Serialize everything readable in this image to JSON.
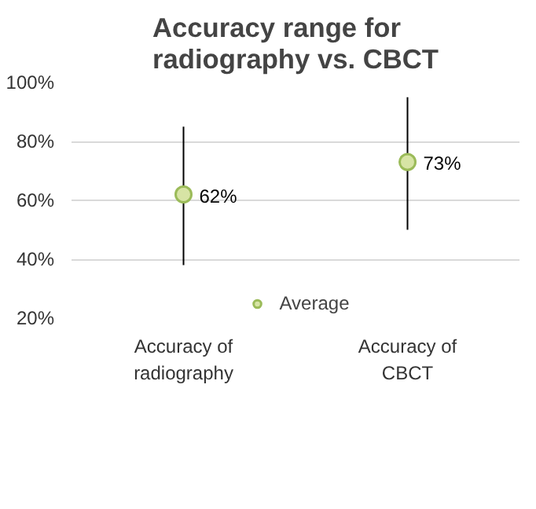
{
  "chart_data": {
    "type": "scatter",
    "title": "Accuracy range for radiography vs. CBCT",
    "categories": [
      "Accuracy of radiography",
      "Accuracy of CBCT"
    ],
    "series": [
      {
        "name": "Average",
        "color": "#d7e4a5",
        "values": [
          62,
          73
        ],
        "errors": [
          [
            38,
            85
          ],
          [
            50,
            95
          ]
        ],
        "value_labels": [
          "62%",
          "73%"
        ]
      }
    ],
    "ylim": [
      20,
      100
    ],
    "yticks": [
      {
        "value": 20,
        "label": "20%"
      },
      {
        "value": 40,
        "label": "40%"
      },
      {
        "value": 60,
        "label": "60%"
      },
      {
        "value": 80,
        "label": "80%"
      },
      {
        "value": 100,
        "label": "100%"
      }
    ],
    "grid": "y",
    "legend": "bottom",
    "marker": "circle"
  }
}
